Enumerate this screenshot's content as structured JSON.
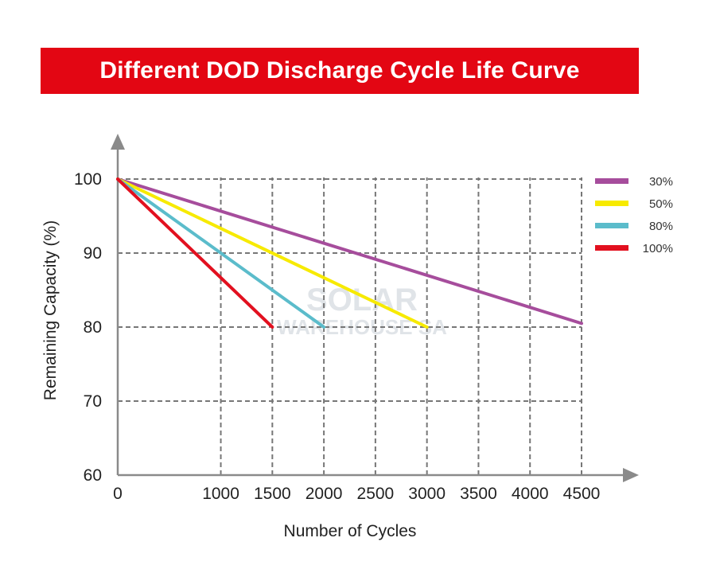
{
  "chart_data": {
    "type": "line",
    "title": "Different DOD Discharge Cycle Life Curve",
    "xlabel": "Number of Cycles",
    "ylabel": "Remaining Capacity (%)",
    "xlim": [
      0,
      4500
    ],
    "ylim": [
      60,
      100
    ],
    "xticks": [
      0,
      1000,
      1500,
      2000,
      2500,
      3000,
      3500,
      4000,
      4500
    ],
    "yticks": [
      60,
      70,
      80,
      90,
      100
    ],
    "grid": true,
    "legend_position": "top-right",
    "series": [
      {
        "name": "30%",
        "color": "#a64d9c",
        "x": [
          0,
          4500
        ],
        "y": [
          100,
          80.5
        ]
      },
      {
        "name": "50%",
        "color": "#f7ea00",
        "x": [
          0,
          3000
        ],
        "y": [
          100,
          80
        ]
      },
      {
        "name": "80%",
        "color": "#5bbccb",
        "x": [
          0,
          2000
        ],
        "y": [
          100,
          80
        ]
      },
      {
        "name": "100%",
        "color": "#e2101f",
        "x": [
          0,
          1500
        ],
        "y": [
          100,
          80
        ]
      }
    ]
  },
  "watermark": {
    "line1": "SOLAR",
    "line2": "WAREHOUSE SA"
  }
}
